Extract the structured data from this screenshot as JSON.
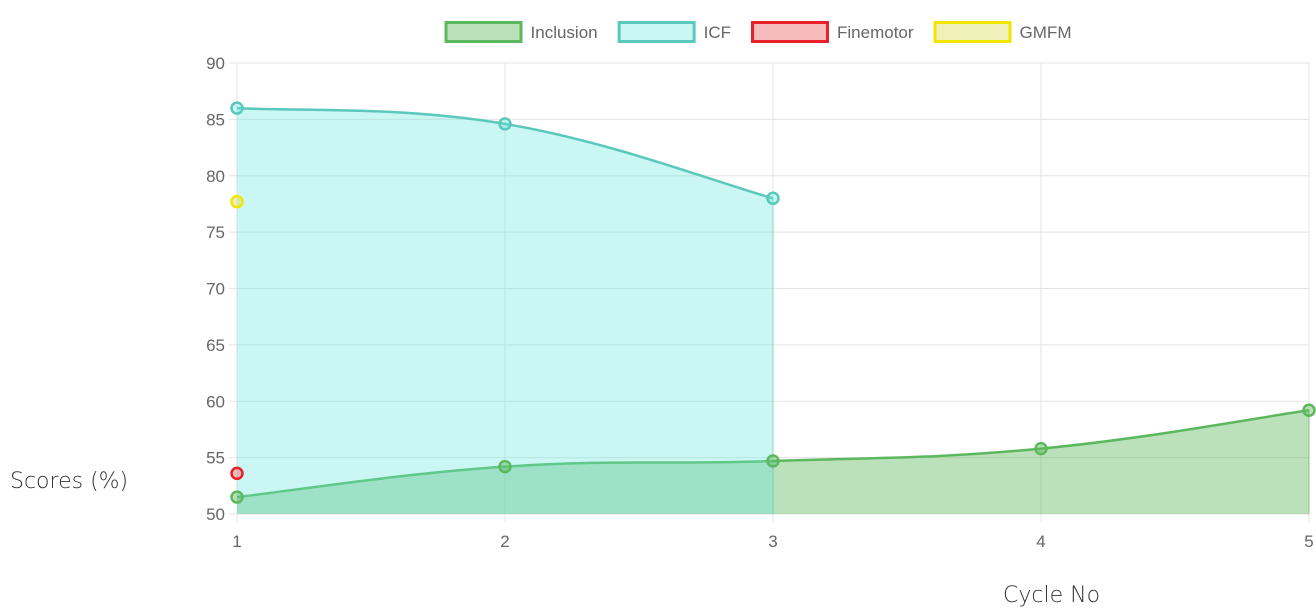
{
  "chart_data": {
    "type": "area",
    "xlabel": "Cycle No",
    "ylabel": "Scores (%)",
    "x": [
      1,
      2,
      3,
      4,
      5
    ],
    "xlim": [
      1,
      5
    ],
    "ylim": [
      50,
      90
    ],
    "yticks": [
      50,
      55,
      60,
      65,
      70,
      75,
      80,
      85,
      90
    ],
    "grid": true,
    "legend_position": "top",
    "series": [
      {
        "name": "Inclusion",
        "x": [
          1,
          2,
          3,
          4,
          5
        ],
        "values": [
          51.5,
          54.2,
          54.7,
          55.8,
          59.2
        ],
        "stroke": "#5cb85c",
        "fill": "rgba(92,184,92,0.42)"
      },
      {
        "name": "ICF",
        "x": [
          1,
          2,
          3
        ],
        "values": [
          86.0,
          84.6,
          78.0
        ],
        "stroke": "#5bc8bd",
        "fill": "rgba(102,230,220,0.35)"
      },
      {
        "name": "Finemotor",
        "x": [
          1
        ],
        "values": [
          53.6
        ],
        "stroke": "#e8202a",
        "fill": "rgba(240,120,120,0.5)"
      },
      {
        "name": "GMFM",
        "x": [
          1
        ],
        "values": [
          77.7
        ],
        "stroke": "#f2e600",
        "fill": "rgba(225,225,120,0.5)"
      }
    ]
  }
}
